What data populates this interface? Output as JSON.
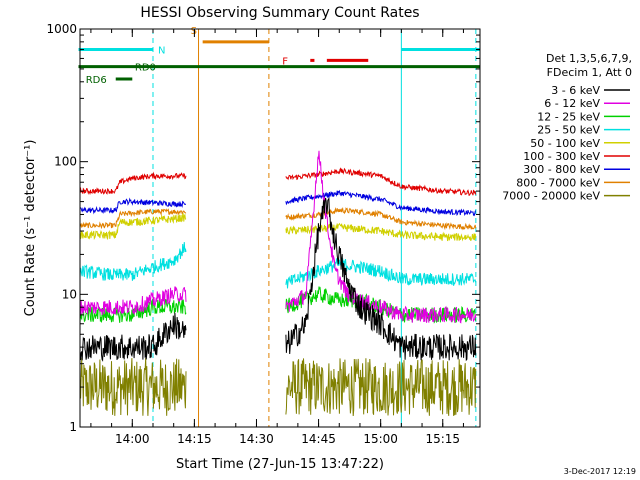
{
  "chart_data": {
    "type": "line",
    "title": "HESSI Observing Summary Count Rates",
    "xlabel": "Start Time (27-Jun-15 13:47:22)",
    "ylabel": "Count Rate (s⁻¹ detector⁻¹)",
    "y_scale": "log",
    "ylim": [
      1,
      1000
    ],
    "xlim": [
      "13:47:22",
      "15:24:00"
    ],
    "x_ticks": [
      "14:00",
      "14:15",
      "14:30",
      "14:45",
      "15:00",
      "15:15"
    ],
    "y_ticks": [
      "1",
      "10",
      "100",
      "1000"
    ],
    "legend_header": [
      "Det 1,3,5,6,7,9,",
      "FDecim 1, Att 0"
    ],
    "legend_position": "right",
    "footer_date": "3-Dec-2017 12:19",
    "gaps": [
      [
        "14:13:00",
        "14:37:00"
      ]
    ],
    "series": [
      {
        "name": "3 - 6 keV",
        "color": "#000000",
        "x": [
          "13:47",
          "14:05",
          "14:10",
          "14:13",
          "14:37",
          "14:42",
          "14:45",
          "14:47",
          "14:49",
          "14:52",
          "14:55",
          "15:00",
          "15:05",
          "15:10",
          "15:15",
          "15:23"
        ],
        "values": [
          4,
          4,
          6,
          5,
          4,
          6,
          30,
          50,
          25,
          12,
          8,
          6,
          4,
          4,
          4,
          4
        ]
      },
      {
        "name": "6 - 12 keV",
        "color": "#e000e0",
        "x": [
          "13:47",
          "14:00",
          "14:05",
          "14:10",
          "14:13",
          "14:37",
          "14:42",
          "14:45",
          "14:47",
          "14:49",
          "14:52",
          "14:55",
          "15:00",
          "15:05",
          "15:15",
          "15:23"
        ],
        "values": [
          8,
          8,
          9,
          10,
          10,
          8,
          10,
          120,
          35,
          15,
          10,
          9,
          8,
          7,
          7,
          7
        ]
      },
      {
        "name": "12 - 25 keV",
        "color": "#00d000",
        "x": [
          "13:47",
          "14:00",
          "14:05",
          "14:10",
          "14:13",
          "14:37",
          "14:45",
          "14:50",
          "14:55",
          "15:00",
          "15:05",
          "15:15",
          "15:23"
        ],
        "values": [
          7,
          7,
          8,
          8,
          8,
          8,
          10,
          9,
          9,
          8,
          7,
          7,
          7
        ]
      },
      {
        "name": "25 - 50 keV",
        "color": "#00e0e0",
        "x": [
          "13:47",
          "13:55",
          "14:00",
          "14:05",
          "14:10",
          "14:13",
          "14:37",
          "14:45",
          "14:50",
          "14:55",
          "15:00",
          "15:05",
          "15:15",
          "15:23"
        ],
        "values": [
          15,
          14,
          14,
          16,
          18,
          23,
          12,
          15,
          17,
          16,
          15,
          13,
          13,
          13
        ]
      },
      {
        "name": "50 - 100 keV",
        "color": "#d0d000",
        "x": [
          "13:47",
          "13:56",
          "13:57",
          "14:00",
          "14:05",
          "14:10",
          "14:13",
          "14:37",
          "14:45",
          "14:50",
          "14:55",
          "15:00",
          "15:05",
          "15:15",
          "15:23"
        ],
        "values": [
          28,
          28,
          35,
          35,
          36,
          37,
          38,
          30,
          31,
          32,
          31,
          30,
          28,
          27,
          27
        ]
      },
      {
        "name": "100 - 300 keV",
        "color": "#e00000",
        "x": [
          "13:47",
          "13:56",
          "13:57",
          "14:00",
          "14:05",
          "14:10",
          "14:13",
          "14:37",
          "14:45",
          "14:50",
          "14:55",
          "15:00",
          "15:05",
          "15:15",
          "15:23"
        ],
        "values": [
          60,
          60,
          70,
          75,
          78,
          78,
          78,
          75,
          80,
          85,
          82,
          78,
          65,
          60,
          58
        ]
      },
      {
        "name": "300 - 800 keV",
        "color": "#0000e0",
        "x": [
          "13:47",
          "13:56",
          "13:57",
          "14:00",
          "14:05",
          "14:10",
          "14:13",
          "14:37",
          "14:45",
          "14:50",
          "14:55",
          "15:00",
          "15:05",
          "15:15",
          "15:23"
        ],
        "values": [
          43,
          43,
          50,
          50,
          49,
          48,
          48,
          50,
          55,
          58,
          55,
          52,
          45,
          42,
          41
        ]
      },
      {
        "name": "800 - 7000 keV",
        "color": "#e08000",
        "x": [
          "13:47",
          "13:56",
          "13:57",
          "14:00",
          "14:05",
          "14:10",
          "14:13",
          "14:37",
          "14:45",
          "14:50",
          "14:55",
          "15:00",
          "15:05",
          "15:15",
          "15:23"
        ],
        "values": [
          33,
          33,
          40,
          41,
          42,
          42,
          42,
          38,
          40,
          43,
          42,
          40,
          35,
          33,
          32
        ]
      },
      {
        "name": "7000 - 20000 keV",
        "color": "#808000",
        "x": [
          "13:47",
          "14:00",
          "14:05",
          "14:10",
          "14:13",
          "14:37",
          "14:45",
          "14:50",
          "14:55",
          "15:00",
          "15:05",
          "15:15",
          "15:23"
        ],
        "values": [
          2,
          2,
          2,
          2,
          2,
          2,
          2,
          2,
          2,
          2,
          2,
          2,
          2
        ]
      }
    ],
    "annotations": [
      {
        "label": "N",
        "color": "#00e0e0",
        "y": 700,
        "segments": [
          [
            "13:47",
            "14:05"
          ],
          [
            "15:05",
            "15:24"
          ]
        ]
      },
      {
        "label": "S",
        "color": "#e08000",
        "y": 800,
        "segments": [
          [
            "14:17",
            "14:33"
          ]
        ]
      },
      {
        "label": "F",
        "color": "#e00000",
        "y": 580,
        "segments": [
          [
            "14:43",
            "14:44"
          ],
          [
            "14:47",
            "14:57"
          ]
        ]
      },
      {
        "label": "RD0",
        "color": "#006000",
        "y": 520,
        "segments": [
          [
            "13:47",
            "15:24"
          ]
        ]
      },
      {
        "label": "RD6",
        "color": "#006000",
        "y": 420,
        "segments": [
          [
            "13:56",
            "14:00"
          ]
        ]
      }
    ],
    "vlines": [
      {
        "x": "14:05",
        "color": "#00e0e0",
        "style": "dashed"
      },
      {
        "x": "14:16",
        "color": "#e08000",
        "style": "solid"
      },
      {
        "x": "14:33",
        "color": "#e08000",
        "style": "dashed"
      },
      {
        "x": "15:05",
        "color": "#00e0e0",
        "style": "solid"
      },
      {
        "x": "15:23",
        "color": "#00e0e0",
        "style": "dashed"
      }
    ]
  }
}
